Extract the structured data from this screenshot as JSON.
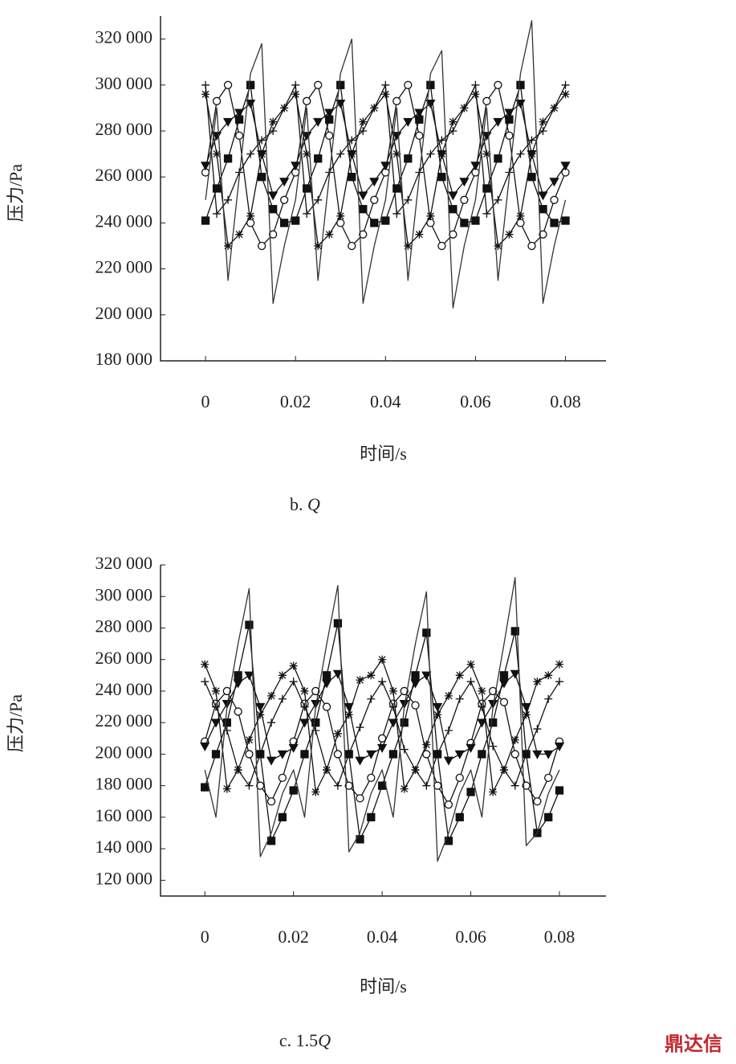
{
  "chart_data": [
    {
      "type": "line",
      "caption": {
        "prefix": "b. ",
        "italic": "Q"
      },
      "ylabel": "压力/Pa",
      "xlabel": "时间/s",
      "x": [
        0,
        0.0025,
        0.005,
        0.0075,
        0.01,
        0.0125,
        0.015,
        0.0175,
        0.02,
        0.0225,
        0.025,
        0.0275,
        0.03,
        0.0325,
        0.035,
        0.0375,
        0.04,
        0.0425,
        0.045,
        0.0475,
        0.05,
        0.0525,
        0.055,
        0.0575,
        0.06,
        0.0625,
        0.065,
        0.0675,
        0.07,
        0.0725,
        0.075,
        0.0775,
        0.08
      ],
      "xlim": [
        -0.01,
        0.089
      ],
      "xticks": [
        0,
        0.02,
        0.04,
        0.06,
        0.08
      ],
      "ylim": [
        180000,
        330000
      ],
      "yticks": [
        {
          "value": 180000,
          "label": "180 000"
        },
        {
          "value": 200000,
          "label": "200 000"
        },
        {
          "value": 220000,
          "label": "220 000"
        },
        {
          "value": 240000,
          "label": "240 000"
        },
        {
          "value": 260000,
          "label": "260 000"
        },
        {
          "value": 280000,
          "label": "280 000"
        },
        {
          "value": 300000,
          "label": "300 000"
        },
        {
          "value": 320000,
          "label": "320 000"
        }
      ],
      "series": [
        {
          "marker": "square",
          "color": "#111",
          "values": [
            241000,
            255000,
            268000,
            285000,
            300000,
            260000,
            246000,
            240000,
            241000,
            255000,
            268000,
            285000,
            300000,
            260000,
            246000,
            240000,
            241000,
            255000,
            268000,
            285000,
            300000,
            260000,
            246000,
            240000,
            241000,
            255000,
            268000,
            285000,
            300000,
            260000,
            246000,
            240000,
            241000
          ]
        },
        {
          "marker": "circle",
          "color": "#111",
          "values": [
            262000,
            293000,
            300000,
            278000,
            240000,
            230000,
            235000,
            250000,
            262000,
            293000,
            300000,
            278000,
            240000,
            230000,
            235000,
            250000,
            262000,
            293000,
            300000,
            278000,
            240000,
            230000,
            235000,
            250000,
            262000,
            293000,
            300000,
            278000,
            240000,
            230000,
            235000,
            250000,
            262000
          ]
        },
        {
          "marker": "triangle",
          "color": "#111",
          "values": [
            265000,
            278000,
            284000,
            288000,
            292000,
            270000,
            252000,
            258000,
            265000,
            278000,
            284000,
            288000,
            292000,
            270000,
            252000,
            258000,
            265000,
            278000,
            284000,
            288000,
            292000,
            270000,
            252000,
            258000,
            265000,
            278000,
            284000,
            288000,
            292000,
            270000,
            252000,
            258000,
            265000
          ]
        },
        {
          "marker": "star",
          "color": "#111",
          "values": [
            296000,
            270000,
            230000,
            235000,
            243000,
            270000,
            284000,
            290000,
            296000,
            270000,
            230000,
            235000,
            243000,
            270000,
            284000,
            290000,
            296000,
            270000,
            230000,
            235000,
            243000,
            270000,
            284000,
            290000,
            296000,
            270000,
            230000,
            235000,
            243000,
            270000,
            284000,
            290000,
            296000
          ]
        },
        {
          "marker": "plus",
          "color": "#111",
          "values": [
            300000,
            244000,
            250000,
            262000,
            270000,
            276000,
            280000,
            290000,
            300000,
            244000,
            250000,
            262000,
            270000,
            276000,
            280000,
            290000,
            300000,
            244000,
            250000,
            262000,
            270000,
            276000,
            280000,
            290000,
            300000,
            244000,
            250000,
            262000,
            270000,
            276000,
            280000,
            290000,
            300000
          ]
        },
        {
          "marker": "none",
          "color": "#333",
          "values": [
            250000,
            290000,
            215000,
            260000,
            305000,
            318000,
            205000,
            230000,
            250000,
            290000,
            215000,
            260000,
            305000,
            320000,
            205000,
            230000,
            250000,
            290000,
            215000,
            260000,
            305000,
            315000,
            203000,
            230000,
            250000,
            290000,
            215000,
            260000,
            305000,
            328000,
            205000,
            230000,
            250000
          ]
        }
      ]
    },
    {
      "type": "line",
      "caption": {
        "prefix": "c. 1.5",
        "italic": "Q"
      },
      "ylabel": "压力/Pa",
      "xlabel": "时间/s",
      "x": [
        0,
        0.0025,
        0.005,
        0.0075,
        0.01,
        0.0125,
        0.015,
        0.0175,
        0.02,
        0.0225,
        0.025,
        0.0275,
        0.03,
        0.0325,
        0.035,
        0.0375,
        0.04,
        0.0425,
        0.045,
        0.0475,
        0.05,
        0.0525,
        0.055,
        0.0575,
        0.06,
        0.0625,
        0.065,
        0.0675,
        0.07,
        0.0725,
        0.075,
        0.0775,
        0.08
      ],
      "xlim": [
        -0.01,
        0.0905
      ],
      "xticks": [
        0,
        0.02,
        0.04,
        0.06,
        0.08
      ],
      "ylim": [
        110000,
        320000
      ],
      "yticks": [
        {
          "value": 120000,
          "label": "120 000"
        },
        {
          "value": 140000,
          "label": "140 000"
        },
        {
          "value": 160000,
          "label": "160 000"
        },
        {
          "value": 180000,
          "label": "180 000"
        },
        {
          "value": 200000,
          "label": "200 000"
        },
        {
          "value": 220000,
          "label": "220 000"
        },
        {
          "value": 240000,
          "label": "240 000"
        },
        {
          "value": 260000,
          "label": "260 000"
        },
        {
          "value": 280000,
          "label": "280 000"
        },
        {
          "value": 300000,
          "label": "300 000"
        },
        {
          "value": 320000,
          "label": "320 000"
        }
      ],
      "series": [
        {
          "marker": "square",
          "color": "#111",
          "values": [
            179000,
            200000,
            220000,
            250000,
            282000,
            200000,
            145000,
            160000,
            177000,
            200000,
            220000,
            250000,
            283000,
            200000,
            146000,
            160000,
            180000,
            200000,
            220000,
            250000,
            277000,
            200000,
            145000,
            160000,
            176000,
            200000,
            220000,
            250000,
            278000,
            200000,
            150000,
            160000,
            177000
          ]
        },
        {
          "marker": "circle",
          "color": "#111",
          "values": [
            208000,
            232000,
            240000,
            227000,
            200000,
            180000,
            170000,
            185000,
            208000,
            232000,
            240000,
            230000,
            200000,
            180000,
            172000,
            185000,
            210000,
            232000,
            240000,
            231000,
            200000,
            180000,
            168000,
            185000,
            207000,
            232000,
            240000,
            233000,
            200000,
            180000,
            170000,
            185000,
            208000
          ]
        },
        {
          "marker": "triangle",
          "color": "#111",
          "values": [
            205000,
            220000,
            232000,
            245000,
            250000,
            230000,
            196000,
            200000,
            204000,
            220000,
            232000,
            245000,
            251000,
            230000,
            196000,
            200000,
            204000,
            220000,
            232000,
            245000,
            250000,
            230000,
            196000,
            200000,
            204000,
            220000,
            232000,
            245000,
            251000,
            230000,
            200000,
            200000,
            205000
          ]
        },
        {
          "marker": "star",
          "color": "#111",
          "values": [
            257000,
            240000,
            178000,
            190000,
            209000,
            225000,
            237000,
            250000,
            256000,
            240000,
            176000,
            190000,
            213000,
            225000,
            247000,
            250000,
            260000,
            240000,
            178000,
            190000,
            206000,
            225000,
            237000,
            250000,
            257000,
            240000,
            176000,
            190000,
            209000,
            225000,
            246000,
            250000,
            257000
          ]
        },
        {
          "marker": "plus",
          "color": "#111",
          "values": [
            246000,
            230000,
            215000,
            190000,
            180000,
            200000,
            220000,
            235000,
            246000,
            230000,
            215000,
            190000,
            180000,
            200000,
            217000,
            235000,
            246000,
            230000,
            203000,
            190000,
            180000,
            200000,
            215000,
            235000,
            246000,
            230000,
            205000,
            190000,
            180000,
            200000,
            216000,
            235000,
            246000
          ]
        },
        {
          "marker": "none",
          "color": "#333",
          "values": [
            190000,
            160000,
            230000,
            270000,
            305000,
            135000,
            150000,
            175000,
            190000,
            160000,
            230000,
            270000,
            307000,
            138000,
            150000,
            175000,
            190000,
            160000,
            230000,
            270000,
            303000,
            132000,
            150000,
            175000,
            190000,
            160000,
            230000,
            270000,
            312000,
            142000,
            150000,
            175000,
            190000
          ]
        }
      ]
    }
  ],
  "watermark": "鼎达信"
}
